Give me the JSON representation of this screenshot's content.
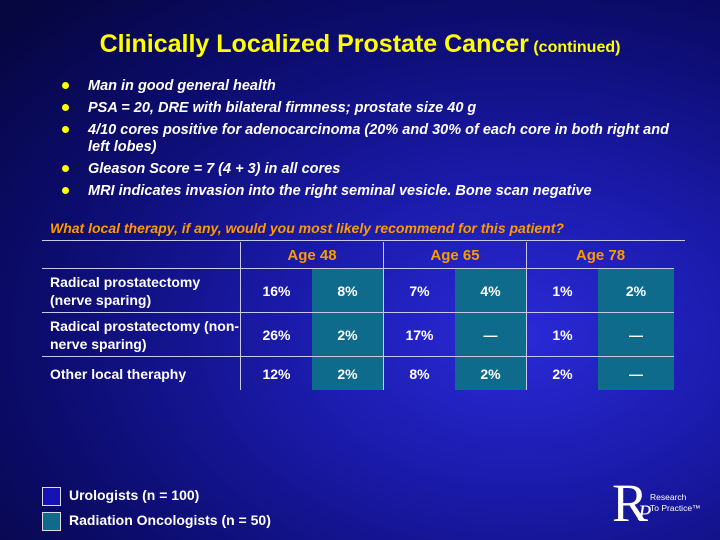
{
  "title": {
    "main": "Clinically Localized Prostate Cancer",
    "sub": "(continued)"
  },
  "bullets": [
    "Man in good general health",
    "PSA = 20, DRE with bilateral firmness; prostate size 40 g",
    "4/10 cores positive for adenocarcinoma (20% and 30% of each core in both right and left lobes)",
    "Gleason Score = 7 (4 + 3) in all cores",
    "MRI indicates invasion into the right seminal vesicle. Bone scan negative"
  ],
  "question": "What local therapy, if any, would you most likely recommend for this patient?",
  "table": {
    "ages": [
      "Age 48",
      "Age 65",
      "Age 78"
    ],
    "rows": [
      {
        "label": "Radical prostatectomy (nerve sparing)",
        "values": [
          "16%",
          "8%",
          "7%",
          "4%",
          "1%",
          "2%"
        ]
      },
      {
        "label": "Radical prostatectomy (non-nerve sparing)",
        "values": [
          "26%",
          "2%",
          "17%",
          "—",
          "1%",
          "—"
        ]
      },
      {
        "label": "Other local theraphy",
        "values": [
          "12%",
          "2%",
          "8%",
          "2%",
          "2%",
          "—"
        ]
      }
    ]
  },
  "legend": {
    "urologists": "Urologists  (n = 100)",
    "radiation": "Radiation Oncologists  (n = 50)"
  },
  "logo": {
    "letter_r": "R",
    "letter_p": "P",
    "line1": "Research",
    "line2": "To Practice™"
  },
  "colors": {
    "title": "#ffff00",
    "accent": "#ff9900",
    "urologist_box": "#1414b4",
    "radiation_cell": "#0f6b8c"
  }
}
